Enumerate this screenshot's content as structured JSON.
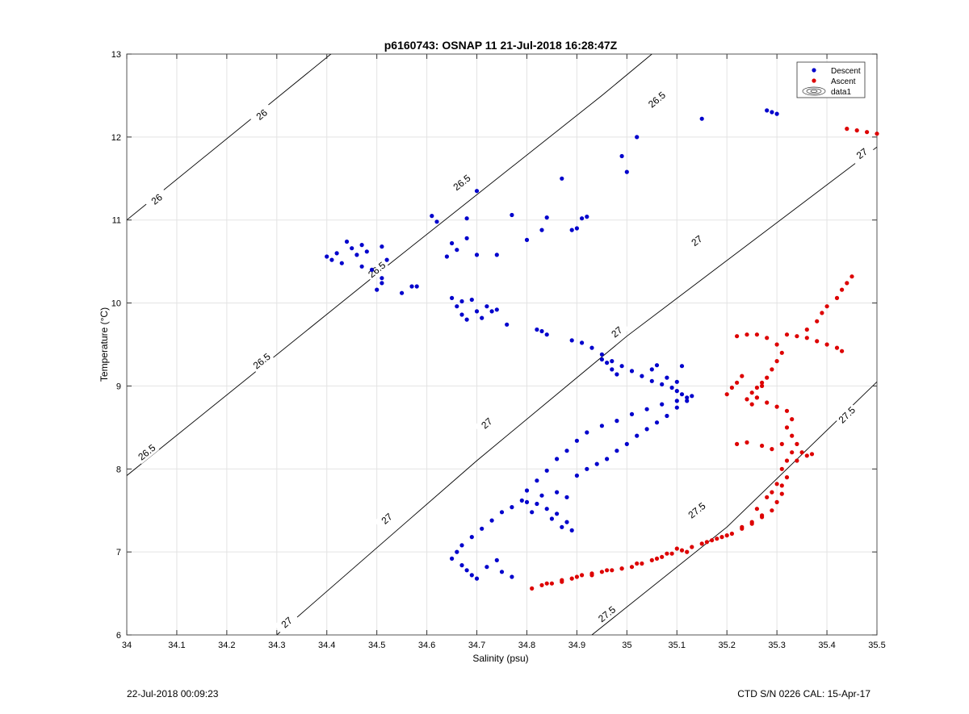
{
  "footer": {
    "left": "22-Jul-2018 00:09:23",
    "right": "CTD S/N 0226  CAL: 15-Apr-17"
  },
  "chart_data": {
    "type": "scatter",
    "title": "p6160743: OSNAP 11 21-Jul-2018 16:28:47Z",
    "xlabel": "Salinity (psu)",
    "ylabel": "Temperature (°C)",
    "xlim": [
      34,
      35.5
    ],
    "ylim": [
      6,
      13
    ],
    "xticks": [
      34,
      34.1,
      34.2,
      34.3,
      34.4,
      34.5,
      34.6,
      34.7,
      34.8,
      34.9,
      35,
      35.1,
      35.2,
      35.3,
      35.4,
      35.5
    ],
    "yticks": [
      6,
      7,
      8,
      9,
      10,
      11,
      12,
      13
    ],
    "xtick_labels": [
      "34",
      "34.1",
      "34.2",
      "34.3",
      "34.4",
      "34.5",
      "34.6",
      "34.7",
      "34.8",
      "34.9",
      "35",
      "35.1",
      "35.2",
      "35.3",
      "35.4",
      "35.5"
    ],
    "ytick_labels": [
      "6",
      "7",
      "8",
      "9",
      "10",
      "11",
      "12",
      "13"
    ],
    "grid": true,
    "legend_position": "top-right",
    "legend": [
      "Descent",
      "Ascent",
      "data1"
    ],
    "contours": [
      {
        "level": 26,
        "label": "26",
        "points": [
          [
            34.0,
            11.0
          ],
          [
            34.5,
            13.45
          ]
        ],
        "label_positions": [
          [
            34.06,
            11.25
          ],
          [
            34.27,
            12.27
          ]
        ]
      },
      {
        "level": 26.5,
        "label": "26.5",
        "points": [
          [
            34.0,
            7.92
          ],
          [
            34.5,
            10.35
          ],
          [
            34.95,
            12.5
          ],
          [
            35.05,
            13.0
          ]
        ],
        "label_positions": [
          [
            34.04,
            8.2
          ],
          [
            34.27,
            9.3
          ],
          [
            34.5,
            10.4
          ],
          [
            34.67,
            11.45
          ],
          [
            35.06,
            12.45
          ]
        ]
      },
      {
        "level": 27,
        "label": "27",
        "points": [
          [
            34.3,
            6.0
          ],
          [
            34.7,
            8.1
          ],
          [
            35.0,
            9.6
          ],
          [
            35.5,
            11.88
          ]
        ],
        "label_positions": [
          [
            34.32,
            6.15
          ],
          [
            34.52,
            7.4
          ],
          [
            34.72,
            8.55
          ],
          [
            34.98,
            9.65
          ],
          [
            35.14,
            10.75
          ],
          [
            35.47,
            11.8
          ]
        ]
      },
      {
        "level": 27.5,
        "label": "27.5",
        "points": [
          [
            34.93,
            6.0
          ],
          [
            35.2,
            7.3
          ],
          [
            35.5,
            9.05
          ]
        ],
        "label_positions": [
          [
            34.96,
            6.25
          ],
          [
            35.14,
            7.5
          ],
          [
            35.44,
            8.65
          ]
        ]
      }
    ],
    "series": [
      {
        "name": "Descent",
        "color": "#0000cc",
        "points": [
          [
            34.4,
            10.56
          ],
          [
            34.41,
            10.52
          ],
          [
            34.42,
            10.6
          ],
          [
            34.43,
            10.48
          ],
          [
            34.44,
            10.74
          ],
          [
            34.45,
            10.66
          ],
          [
            34.46,
            10.58
          ],
          [
            34.47,
            10.44
          ],
          [
            34.47,
            10.7
          ],
          [
            34.48,
            10.62
          ],
          [
            34.49,
            10.4
          ],
          [
            34.5,
            10.16
          ],
          [
            34.51,
            10.3
          ],
          [
            34.51,
            10.24
          ],
          [
            34.51,
            10.68
          ],
          [
            34.52,
            10.52
          ],
          [
            34.55,
            10.12
          ],
          [
            34.57,
            10.2
          ],
          [
            34.58,
            10.2
          ],
          [
            34.61,
            11.05
          ],
          [
            34.62,
            10.98
          ],
          [
            34.64,
            10.56
          ],
          [
            34.65,
            10.72
          ],
          [
            34.66,
            10.64
          ],
          [
            34.68,
            11.02
          ],
          [
            34.68,
            10.78
          ],
          [
            34.7,
            11.35
          ],
          [
            34.7,
            10.58
          ],
          [
            34.74,
            10.58
          ],
          [
            34.77,
            11.06
          ],
          [
            34.8,
            10.76
          ],
          [
            34.83,
            10.88
          ],
          [
            34.84,
            11.03
          ],
          [
            34.87,
            11.5
          ],
          [
            34.89,
            10.88
          ],
          [
            34.9,
            10.9
          ],
          [
            34.91,
            11.02
          ],
          [
            34.92,
            11.04
          ],
          [
            34.99,
            11.77
          ],
          [
            35.0,
            11.58
          ],
          [
            35.02,
            12.0
          ],
          [
            35.15,
            12.22
          ],
          [
            35.28,
            12.32
          ],
          [
            35.29,
            12.3
          ],
          [
            35.3,
            12.28
          ],
          [
            34.65,
            10.06
          ],
          [
            34.66,
            9.96
          ],
          [
            34.67,
            9.86
          ],
          [
            34.67,
            10.02
          ],
          [
            34.68,
            9.8
          ],
          [
            34.69,
            10.04
          ],
          [
            34.7,
            9.9
          ],
          [
            34.71,
            9.82
          ],
          [
            34.72,
            9.96
          ],
          [
            34.73,
            9.9
          ],
          [
            34.74,
            9.92
          ],
          [
            34.76,
            9.74
          ],
          [
            34.82,
            9.68
          ],
          [
            34.83,
            9.66
          ],
          [
            34.84,
            9.62
          ],
          [
            34.89,
            9.55
          ],
          [
            34.91,
            9.52
          ],
          [
            34.93,
            9.46
          ],
          [
            34.95,
            9.38
          ],
          [
            34.97,
            9.3
          ],
          [
            34.99,
            9.24
          ],
          [
            35.01,
            9.18
          ],
          [
            35.03,
            9.12
          ],
          [
            35.05,
            9.06
          ],
          [
            35.07,
            9.02
          ],
          [
            35.09,
            8.98
          ],
          [
            35.1,
            8.94
          ],
          [
            35.11,
            8.9
          ],
          [
            35.12,
            8.86
          ],
          [
            35.1,
            8.82
          ],
          [
            35.07,
            8.78
          ],
          [
            35.04,
            8.72
          ],
          [
            35.01,
            8.66
          ],
          [
            34.98,
            8.58
          ],
          [
            34.95,
            8.52
          ],
          [
            34.92,
            8.44
          ],
          [
            34.9,
            8.34
          ],
          [
            34.88,
            8.22
          ],
          [
            34.86,
            8.12
          ],
          [
            34.84,
            7.98
          ],
          [
            34.82,
            7.86
          ],
          [
            34.8,
            7.74
          ],
          [
            34.79,
            7.62
          ],
          [
            34.77,
            7.54
          ],
          [
            34.75,
            7.48
          ],
          [
            34.73,
            7.38
          ],
          [
            34.71,
            7.28
          ],
          [
            34.69,
            7.18
          ],
          [
            34.67,
            7.08
          ],
          [
            34.66,
            7.0
          ],
          [
            34.65,
            6.92
          ],
          [
            34.67,
            6.84
          ],
          [
            34.68,
            6.78
          ],
          [
            34.69,
            6.72
          ],
          [
            34.7,
            6.68
          ],
          [
            34.72,
            6.82
          ],
          [
            34.74,
            6.9
          ],
          [
            34.75,
            6.76
          ],
          [
            34.77,
            6.7
          ],
          [
            34.8,
            7.6
          ],
          [
            34.82,
            7.58
          ],
          [
            34.84,
            7.52
          ],
          [
            34.86,
            7.46
          ],
          [
            34.88,
            7.36
          ],
          [
            34.89,
            7.26
          ],
          [
            34.87,
            7.3
          ],
          [
            34.85,
            7.4
          ],
          [
            34.81,
            7.48
          ],
          [
            34.83,
            7.68
          ],
          [
            34.86,
            7.72
          ],
          [
            34.88,
            7.66
          ],
          [
            34.9,
            7.92
          ],
          [
            34.92,
            8.0
          ],
          [
            34.94,
            8.06
          ],
          [
            34.96,
            8.12
          ],
          [
            34.98,
            8.22
          ],
          [
            35.0,
            8.3
          ],
          [
            35.02,
            8.4
          ],
          [
            35.04,
            8.48
          ],
          [
            35.06,
            8.56
          ],
          [
            35.08,
            8.64
          ],
          [
            35.1,
            8.74
          ],
          [
            35.12,
            8.82
          ],
          [
            35.13,
            8.88
          ],
          [
            34.95,
            9.32
          ],
          [
            34.96,
            9.28
          ],
          [
            34.97,
            9.2
          ],
          [
            34.98,
            9.14
          ],
          [
            35.05,
            9.2
          ],
          [
            35.06,
            9.25
          ],
          [
            35.08,
            9.1
          ],
          [
            35.1,
            9.05
          ],
          [
            35.11,
            9.24
          ]
        ]
      },
      {
        "name": "Ascent",
        "color": "#dd0000",
        "points": [
          [
            35.44,
            12.1
          ],
          [
            35.46,
            12.08
          ],
          [
            35.48,
            12.06
          ],
          [
            35.5,
            12.04
          ],
          [
            34.81,
            6.56
          ],
          [
            34.83,
            6.6
          ],
          [
            34.85,
            6.62
          ],
          [
            34.87,
            6.66
          ],
          [
            34.89,
            6.68
          ],
          [
            34.91,
            6.72
          ],
          [
            34.93,
            6.74
          ],
          [
            34.95,
            6.76
          ],
          [
            34.97,
            6.78
          ],
          [
            34.99,
            6.8
          ],
          [
            35.01,
            6.82
          ],
          [
            35.03,
            6.86
          ],
          [
            35.05,
            6.9
          ],
          [
            35.07,
            6.94
          ],
          [
            35.09,
            6.98
          ],
          [
            35.11,
            7.02
          ],
          [
            35.13,
            7.06
          ],
          [
            35.15,
            7.1
          ],
          [
            35.17,
            7.14
          ],
          [
            35.19,
            7.18
          ],
          [
            35.21,
            7.22
          ],
          [
            35.23,
            7.28
          ],
          [
            35.25,
            7.34
          ],
          [
            35.27,
            7.42
          ],
          [
            35.29,
            7.5
          ],
          [
            35.3,
            7.6
          ],
          [
            35.31,
            7.7
          ],
          [
            35.31,
            7.8
          ],
          [
            35.32,
            7.9
          ],
          [
            35.31,
            8.0
          ],
          [
            35.32,
            8.1
          ],
          [
            35.33,
            8.2
          ],
          [
            35.34,
            8.3
          ],
          [
            35.33,
            8.4
          ],
          [
            35.32,
            8.5
          ],
          [
            35.33,
            8.6
          ],
          [
            35.32,
            8.7
          ],
          [
            35.3,
            8.75
          ],
          [
            35.28,
            8.8
          ],
          [
            35.26,
            8.86
          ],
          [
            35.25,
            8.92
          ],
          [
            35.26,
            8.98
          ],
          [
            35.27,
            9.04
          ],
          [
            35.28,
            9.1
          ],
          [
            35.29,
            9.2
          ],
          [
            35.3,
            9.3
          ],
          [
            35.31,
            9.4
          ],
          [
            35.3,
            9.5
          ],
          [
            35.28,
            9.58
          ],
          [
            35.26,
            9.62
          ],
          [
            35.24,
            9.62
          ],
          [
            35.22,
            9.6
          ],
          [
            35.32,
            9.62
          ],
          [
            35.34,
            9.6
          ],
          [
            35.36,
            9.58
          ],
          [
            35.38,
            9.54
          ],
          [
            35.4,
            9.5
          ],
          [
            35.42,
            9.46
          ],
          [
            35.43,
            9.42
          ],
          [
            35.36,
            9.68
          ],
          [
            35.38,
            9.78
          ],
          [
            35.39,
            9.88
          ],
          [
            35.4,
            9.96
          ],
          [
            35.42,
            10.06
          ],
          [
            35.43,
            10.16
          ],
          [
            35.44,
            10.24
          ],
          [
            35.45,
            10.32
          ],
          [
            35.2,
            8.9
          ],
          [
            35.21,
            8.98
          ],
          [
            35.22,
            9.04
          ],
          [
            35.23,
            9.12
          ],
          [
            35.24,
            8.84
          ],
          [
            35.25,
            8.78
          ],
          [
            35.26,
            8.86
          ],
          [
            35.27,
            9.0
          ],
          [
            35.22,
            8.3
          ],
          [
            35.24,
            8.32
          ],
          [
            35.27,
            8.28
          ],
          [
            35.29,
            8.24
          ],
          [
            35.31,
            8.3
          ],
          [
            35.35,
            8.2
          ],
          [
            35.36,
            8.16
          ],
          [
            35.37,
            8.18
          ],
          [
            35.34,
            8.1
          ],
          [
            35.28,
            7.66
          ],
          [
            35.29,
            7.72
          ],
          [
            35.3,
            7.82
          ],
          [
            35.26,
            7.52
          ],
          [
            35.27,
            7.44
          ],
          [
            35.25,
            7.36
          ],
          [
            35.23,
            7.3
          ],
          [
            35.2,
            7.2
          ],
          [
            35.18,
            7.16
          ],
          [
            35.16,
            7.12
          ],
          [
            35.12,
            7.0
          ],
          [
            35.1,
            7.04
          ],
          [
            35.08,
            6.98
          ],
          [
            35.06,
            6.92
          ],
          [
            35.02,
            6.86
          ],
          [
            34.99,
            6.8
          ],
          [
            34.96,
            6.78
          ],
          [
            34.93,
            6.72
          ],
          [
            34.9,
            6.7
          ],
          [
            34.87,
            6.64
          ],
          [
            34.84,
            6.62
          ]
        ]
      }
    ]
  }
}
